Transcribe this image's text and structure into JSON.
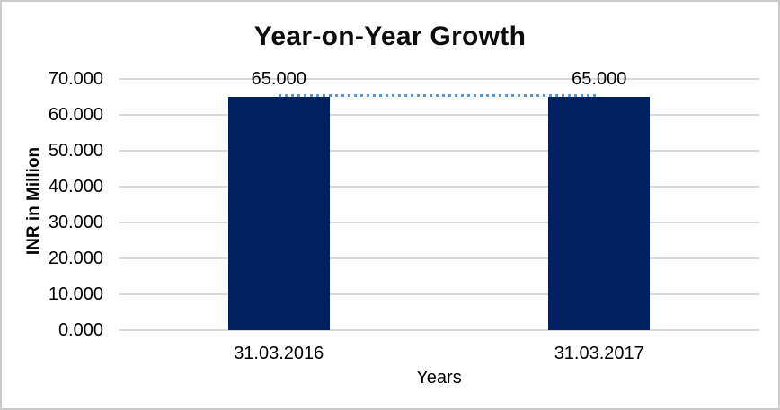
{
  "chart_data": {
    "type": "bar",
    "title": "Year-on-Year Growth",
    "xlabel": "Years",
    "ylabel": "INR in Million",
    "categories": [
      "31.03.2016",
      "31.03.2017"
    ],
    "series": [
      {
        "name": "bars",
        "type": "bar",
        "values": [
          65.0,
          65.0
        ],
        "data_labels": [
          "65.000",
          "65.000"
        ],
        "color": "#002060"
      },
      {
        "name": "connector",
        "type": "dotted_line",
        "values": [
          65.0,
          65.0
        ],
        "color": "#5b9bd5"
      }
    ],
    "ylim": [
      0,
      70
    ],
    "yticks": [
      {
        "value": 0,
        "label": "0.000"
      },
      {
        "value": 10,
        "label": "10.000"
      },
      {
        "value": 20,
        "label": "20.000"
      },
      {
        "value": 30,
        "label": "30.000"
      },
      {
        "value": 40,
        "label": "40.000"
      },
      {
        "value": 50,
        "label": "50.000"
      },
      {
        "value": 60,
        "label": "60.000"
      },
      {
        "value": 70,
        "label": "70.000"
      }
    ],
    "grid": true,
    "legend": "none",
    "colors": {
      "gridline": "#d9d9d9",
      "text": "#000000",
      "frame_border": "#cbcbcb",
      "background": "#ffffff"
    }
  }
}
